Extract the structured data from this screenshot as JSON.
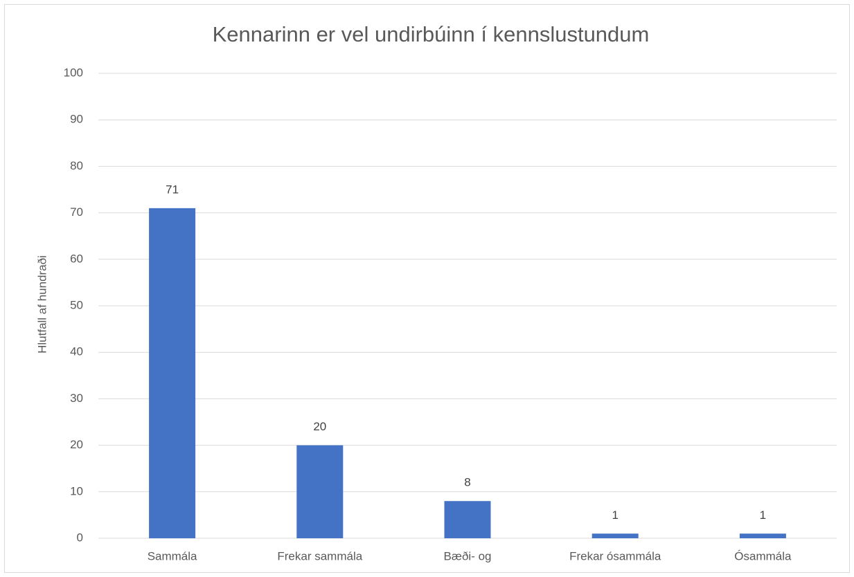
{
  "chart_data": {
    "type": "bar",
    "title": "Kennarinn er vel undirbúinn í kennslustundum",
    "y_label": "Hlutfall af hundraði",
    "categories": [
      "Sammála",
      "Frekar sammála",
      "Bæði- og",
      "Frekar ósammála",
      "Ósammála"
    ],
    "values": [
      71,
      20,
      8,
      1,
      1
    ],
    "color": "#4472c4",
    "ylim": [
      0,
      100
    ],
    "yticks": [
      0,
      10,
      20,
      30,
      40,
      50,
      60,
      70,
      80,
      90,
      100
    ],
    "grid": true,
    "data_labels": true
  }
}
